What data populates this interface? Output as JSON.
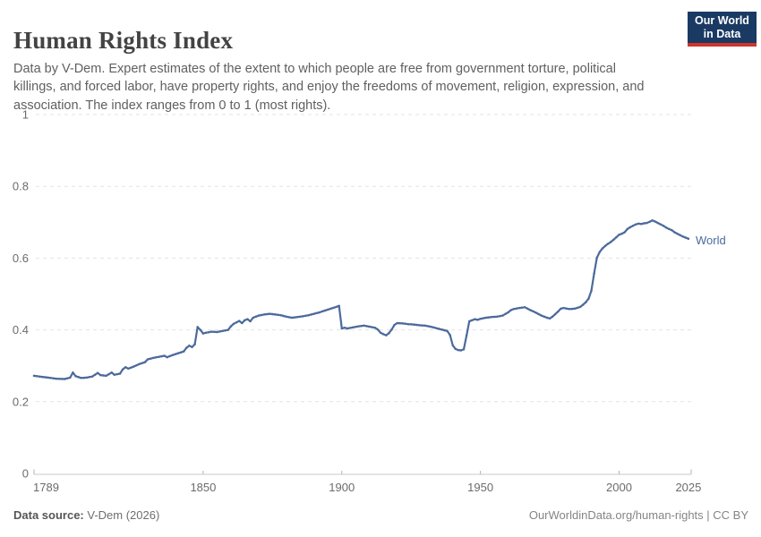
{
  "header": {
    "title": "Human Rights Index",
    "subtitle": "Data by V-Dem. Expert estimates of the extent to which people are free from government torture, political killings, and forced labor, have property rights, and enjoy the freedoms of movement, religion, expression, and association. The index ranges from 0 to 1 (most rights).",
    "logo": {
      "line1": "Our World",
      "line2": "in Data",
      "bg_color": "#1a3a63",
      "accent_color": "#d0352c"
    }
  },
  "chart_data": {
    "type": "line",
    "title": "Human Rights Index",
    "xlabel": "",
    "ylabel": "",
    "xlim": [
      1789,
      2026
    ],
    "ylim": [
      0,
      1
    ],
    "x_ticks": [
      1789,
      1850,
      1900,
      1950,
      2000,
      2025
    ],
    "y_ticks": [
      0,
      0.2,
      0.4,
      0.6,
      0.8,
      1
    ],
    "grid": "horizontal-dashed",
    "legend_position": "end-of-line-label",
    "axis_color": "#c9c9c9",
    "grid_color": "#e3e3e3",
    "tick_label_color": "#6b6b6b",
    "series": [
      {
        "name": "World",
        "color": "#4c6a9c",
        "points": [
          [
            1789,
            0.272
          ],
          [
            1791,
            0.27
          ],
          [
            1793,
            0.268
          ],
          [
            1795,
            0.266
          ],
          [
            1797,
            0.264
          ],
          [
            1800,
            0.263
          ],
          [
            1802,
            0.267
          ],
          [
            1803,
            0.281
          ],
          [
            1804,
            0.271
          ],
          [
            1806,
            0.266
          ],
          [
            1808,
            0.267
          ],
          [
            1810,
            0.27
          ],
          [
            1812,
            0.28
          ],
          [
            1813,
            0.274
          ],
          [
            1815,
            0.272
          ],
          [
            1817,
            0.281
          ],
          [
            1818,
            0.275
          ],
          [
            1820,
            0.278
          ],
          [
            1821,
            0.29
          ],
          [
            1822,
            0.296
          ],
          [
            1823,
            0.292
          ],
          [
            1825,
            0.298
          ],
          [
            1827,
            0.305
          ],
          [
            1829,
            0.31
          ],
          [
            1830,
            0.318
          ],
          [
            1832,
            0.322
          ],
          [
            1834,
            0.325
          ],
          [
            1836,
            0.328
          ],
          [
            1837,
            0.324
          ],
          [
            1839,
            0.33
          ],
          [
            1841,
            0.335
          ],
          [
            1843,
            0.34
          ],
          [
            1844,
            0.35
          ],
          [
            1845,
            0.356
          ],
          [
            1846,
            0.352
          ],
          [
            1847,
            0.36
          ],
          [
            1848,
            0.408
          ],
          [
            1849,
            0.4
          ],
          [
            1850,
            0.39
          ],
          [
            1851,
            0.392
          ],
          [
            1853,
            0.395
          ],
          [
            1855,
            0.394
          ],
          [
            1857,
            0.397
          ],
          [
            1859,
            0.4
          ],
          [
            1860,
            0.41
          ],
          [
            1861,
            0.417
          ],
          [
            1862,
            0.421
          ],
          [
            1863,
            0.425
          ],
          [
            1864,
            0.419
          ],
          [
            1865,
            0.427
          ],
          [
            1866,
            0.43
          ],
          [
            1867,
            0.424
          ],
          [
            1868,
            0.434
          ],
          [
            1870,
            0.44
          ],
          [
            1872,
            0.443
          ],
          [
            1874,
            0.445
          ],
          [
            1876,
            0.443
          ],
          [
            1878,
            0.441
          ],
          [
            1880,
            0.437
          ],
          [
            1882,
            0.434
          ],
          [
            1884,
            0.436
          ],
          [
            1886,
            0.438
          ],
          [
            1888,
            0.441
          ],
          [
            1890,
            0.445
          ],
          [
            1892,
            0.449
          ],
          [
            1894,
            0.454
          ],
          [
            1896,
            0.459
          ],
          [
            1898,
            0.464
          ],
          [
            1899,
            0.467
          ],
          [
            1900,
            0.404
          ],
          [
            1901,
            0.406
          ],
          [
            1902,
            0.404
          ],
          [
            1904,
            0.407
          ],
          [
            1906,
            0.41
          ],
          [
            1908,
            0.412
          ],
          [
            1910,
            0.409
          ],
          [
            1912,
            0.406
          ],
          [
            1913,
            0.401
          ],
          [
            1914,
            0.392
          ],
          [
            1915,
            0.388
          ],
          [
            1916,
            0.385
          ],
          [
            1917,
            0.391
          ],
          [
            1918,
            0.401
          ],
          [
            1919,
            0.414
          ],
          [
            1920,
            0.419
          ],
          [
            1922,
            0.418
          ],
          [
            1924,
            0.416
          ],
          [
            1926,
            0.415
          ],
          [
            1928,
            0.413
          ],
          [
            1930,
            0.412
          ],
          [
            1932,
            0.409
          ],
          [
            1934,
            0.405
          ],
          [
            1936,
            0.401
          ],
          [
            1938,
            0.397
          ],
          [
            1939,
            0.386
          ],
          [
            1940,
            0.357
          ],
          [
            1941,
            0.347
          ],
          [
            1942,
            0.344
          ],
          [
            1943,
            0.343
          ],
          [
            1944,
            0.346
          ],
          [
            1945,
            0.384
          ],
          [
            1946,
            0.424
          ],
          [
            1947,
            0.427
          ],
          [
            1948,
            0.43
          ],
          [
            1949,
            0.428
          ],
          [
            1950,
            0.431
          ],
          [
            1952,
            0.434
          ],
          [
            1954,
            0.436
          ],
          [
            1956,
            0.437
          ],
          [
            1958,
            0.44
          ],
          [
            1960,
            0.449
          ],
          [
            1961,
            0.455
          ],
          [
            1962,
            0.458
          ],
          [
            1964,
            0.461
          ],
          [
            1966,
            0.463
          ],
          [
            1968,
            0.455
          ],
          [
            1970,
            0.448
          ],
          [
            1972,
            0.44
          ],
          [
            1974,
            0.434
          ],
          [
            1975,
            0.432
          ],
          [
            1976,
            0.437
          ],
          [
            1977,
            0.444
          ],
          [
            1978,
            0.451
          ],
          [
            1979,
            0.459
          ],
          [
            1980,
            0.461
          ],
          [
            1982,
            0.458
          ],
          [
            1984,
            0.459
          ],
          [
            1986,
            0.464
          ],
          [
            1987,
            0.47
          ],
          [
            1988,
            0.477
          ],
          [
            1989,
            0.487
          ],
          [
            1990,
            0.509
          ],
          [
            1991,
            0.557
          ],
          [
            1992,
            0.601
          ],
          [
            1993,
            0.617
          ],
          [
            1994,
            0.627
          ],
          [
            1995,
            0.634
          ],
          [
            1996,
            0.64
          ],
          [
            1997,
            0.645
          ],
          [
            1998,
            0.651
          ],
          [
            1999,
            0.658
          ],
          [
            2000,
            0.665
          ],
          [
            2001,
            0.668
          ],
          [
            2002,
            0.672
          ],
          [
            2003,
            0.681
          ],
          [
            2004,
            0.686
          ],
          [
            2005,
            0.69
          ],
          [
            2006,
            0.694
          ],
          [
            2007,
            0.696
          ],
          [
            2008,
            0.695
          ],
          [
            2009,
            0.697
          ],
          [
            2010,
            0.698
          ],
          [
            2011,
            0.701
          ],
          [
            2012,
            0.705
          ],
          [
            2013,
            0.702
          ],
          [
            2014,
            0.698
          ],
          [
            2015,
            0.694
          ],
          [
            2016,
            0.69
          ],
          [
            2017,
            0.685
          ],
          [
            2018,
            0.681
          ],
          [
            2019,
            0.678
          ],
          [
            2020,
            0.672
          ],
          [
            2021,
            0.668
          ],
          [
            2022,
            0.664
          ],
          [
            2023,
            0.66
          ],
          [
            2024,
            0.657
          ],
          [
            2025,
            0.654
          ]
        ]
      }
    ]
  },
  "footer": {
    "source_label": "Data source:",
    "source_value": " V-Dem (2026)",
    "credit": "OurWorldinData.org/human-rights | CC BY"
  }
}
